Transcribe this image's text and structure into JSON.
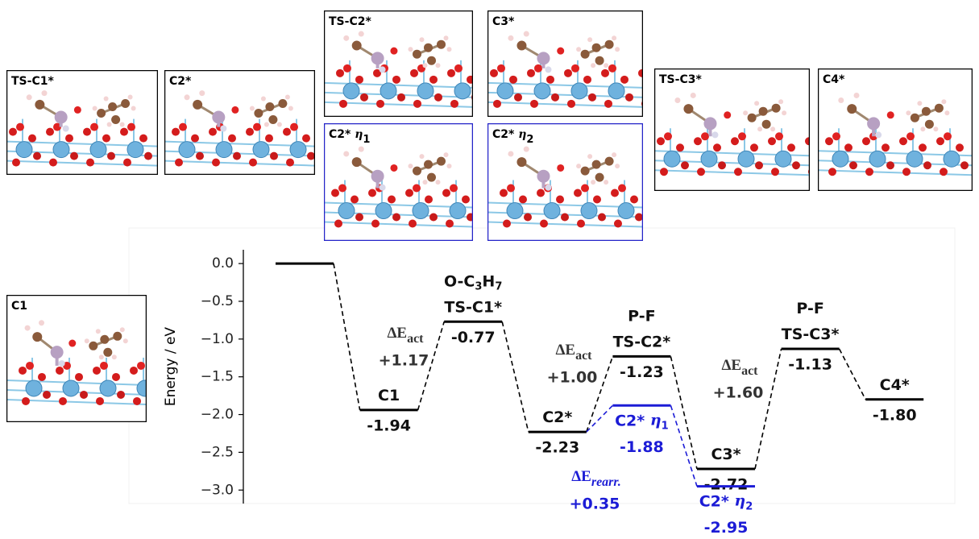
{
  "chart_data": {
    "type": "energy-profile",
    "ylabel": "Energy / eV",
    "ylim": [
      -3.2,
      0.3
    ],
    "yticks": [
      {
        "value": 0,
        "label": "0.0"
      },
      {
        "value": -0.5,
        "label": "−0.5"
      },
      {
        "value": -1,
        "label": "−1.0"
      },
      {
        "value": -1.5,
        "label": "−1.5"
      },
      {
        "value": -2,
        "label": "−2.0"
      },
      {
        "value": -2.5,
        "label": "−2.5"
      },
      {
        "value": -3,
        "label": "−3.0"
      }
    ],
    "series": [
      {
        "color": "#000000",
        "values": [
          0,
          -1.94,
          -0.77,
          -2.23,
          -1.23,
          -2.72,
          -1.13,
          -1.8
        ],
        "value_labels": [
          null,
          "-1.94",
          "-0.77",
          "-2.23",
          "-1.23",
          "-2.72",
          "-1.13",
          "-1.80"
        ],
        "labels": [
          null,
          [
            "C1"
          ],
          [
            "TS-C1*"
          ],
          [
            "C2*"
          ],
          [
            "TS-C2*"
          ],
          [
            "C3*"
          ],
          [
            "TS-C3*"
          ],
          [
            "C4*"
          ]
        ],
        "top_labels": [
          null,
          null,
          [
            "O-C",
            "3",
            "H",
            "7"
          ],
          null,
          [
            "P-F"
          ],
          null,
          [
            "P-F"
          ],
          null
        ]
      },
      {
        "color": "#1c1cd6",
        "values": [
          null,
          null,
          null,
          null,
          -1.88,
          -2.95,
          null,
          null
        ],
        "value_labels": [
          null,
          null,
          null,
          null,
          "-1.88",
          "-2.95",
          null,
          null
        ],
        "labels": [
          null,
          null,
          null,
          null,
          [
            "C2* ",
            "η",
            "1"
          ],
          [
            "C2* ",
            "η",
            "2"
          ],
          null,
          null
        ],
        "top_labels": [
          null,
          null,
          null,
          null,
          null,
          null,
          null,
          null
        ]
      }
    ],
    "annotations": [
      {
        "label": [
          "ΔE",
          "act"
        ],
        "value": "+1.17",
        "color": "#333333"
      },
      {
        "label": [
          "ΔE",
          "act"
        ],
        "value": "+1.00",
        "color": "#333333"
      },
      {
        "label": [
          "ΔE",
          "act"
        ],
        "value": "+1.60",
        "color": "#333333"
      },
      {
        "label": [
          "ΔE",
          "rearr."
        ],
        "value": "+0.35",
        "color": "#1c1cd6"
      }
    ]
  },
  "panels": [
    [
      "TS-C1*"
    ],
    [
      "C2*"
    ],
    [
      "TS-C2*"
    ],
    [
      "C3*"
    ],
    [
      "C2* ",
      "η",
      "1"
    ],
    [
      "C2* ",
      "η",
      "2"
    ],
    [
      "TS-C3*"
    ],
    [
      "C4*"
    ],
    [
      "C1"
    ]
  ]
}
